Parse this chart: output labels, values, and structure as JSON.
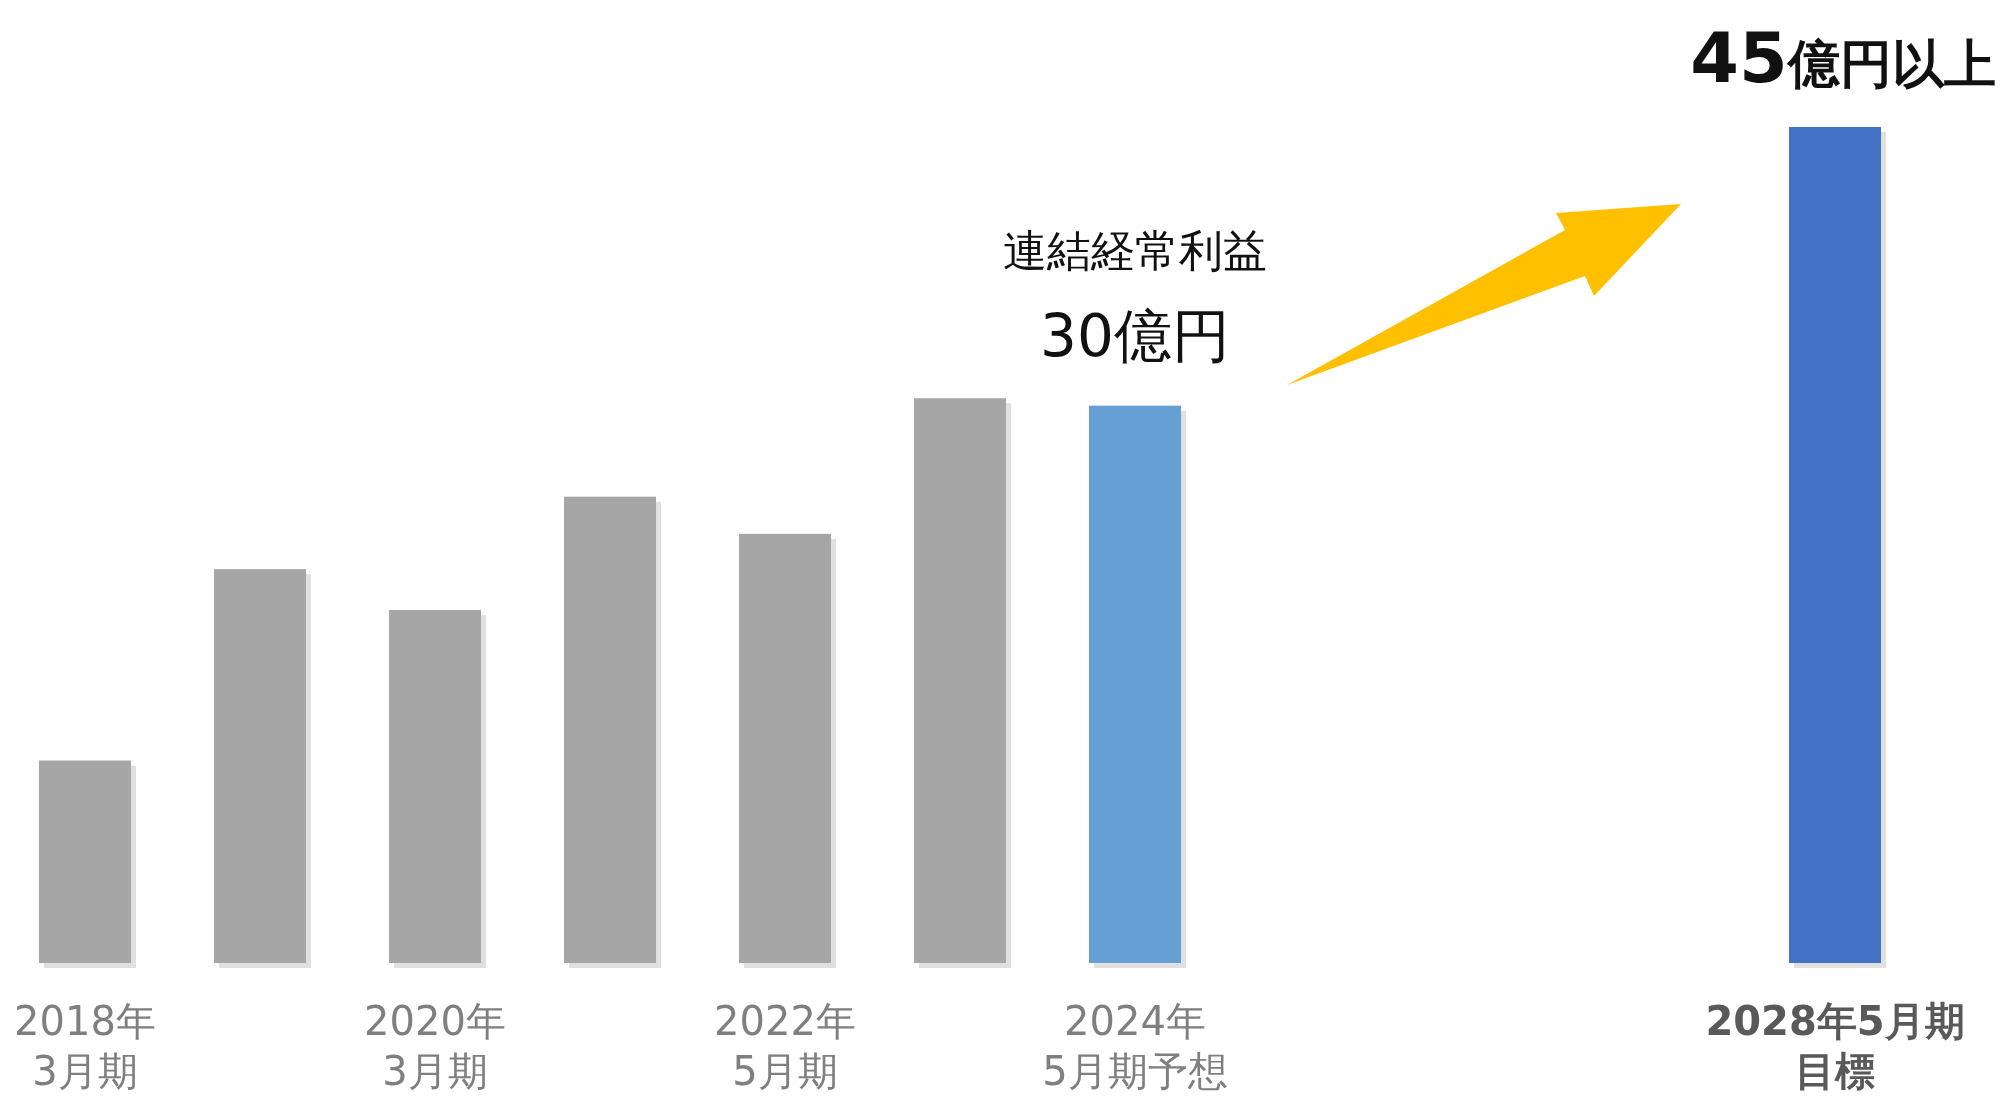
{
  "chart_data": {
    "type": "bar",
    "categories": [
      "2018年\n3月期",
      null,
      "2020年\n3月期",
      null,
      "2022年\n5月期",
      null,
      "2024年\n5月期予想",
      null,
      null,
      null,
      "2028年5月期目標"
    ],
    "values": [
      10.9,
      21.2,
      19.0,
      25.1,
      23.1,
      30.4,
      30,
      null,
      null,
      null,
      45
    ],
    "colors": [
      "#a6a6a6",
      "#a6a6a6",
      "#a6a6a6",
      "#a6a6a6",
      "#a6a6a6",
      "#a6a6a6",
      "#659fd3",
      null,
      null,
      null,
      "#4472c4"
    ],
    "value_labels": [
      null,
      null,
      null,
      null,
      null,
      null,
      "30億円",
      null,
      null,
      null,
      "45億円以上"
    ],
    "annotations": [
      {
        "text": "連結経常利益",
        "x": "2024年\n5月期予想",
        "y": 30
      }
    ],
    "ylim": [
      0,
      45
    ]
  }
}
